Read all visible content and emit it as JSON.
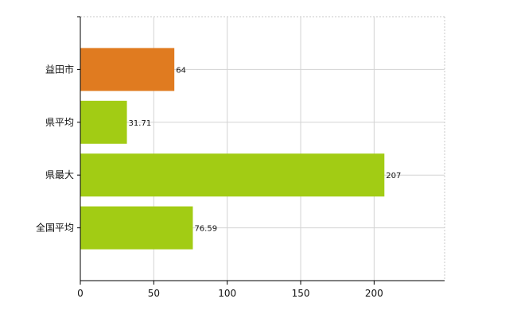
{
  "chart_data": {
    "type": "bar",
    "orientation": "horizontal",
    "title": "",
    "xlabel": "",
    "ylabel": "",
    "categories": [
      "益田市",
      "県平均",
      "県最大",
      "全国平均"
    ],
    "values": [
      64,
      31.71,
      207,
      76.59
    ],
    "value_labels": [
      "64",
      "31.71",
      "207",
      "76.59"
    ],
    "bar_colors": [
      "#e07b20",
      "#a2cc14",
      "#a2cc14",
      "#a2cc14"
    ],
    "xlim": [
      0,
      248
    ],
    "x_ticks": [
      0,
      50,
      100,
      150,
      200
    ],
    "x_tick_labels": [
      "0",
      "50",
      "100",
      "150",
      "200"
    ],
    "grid": true,
    "legend": "none"
  }
}
